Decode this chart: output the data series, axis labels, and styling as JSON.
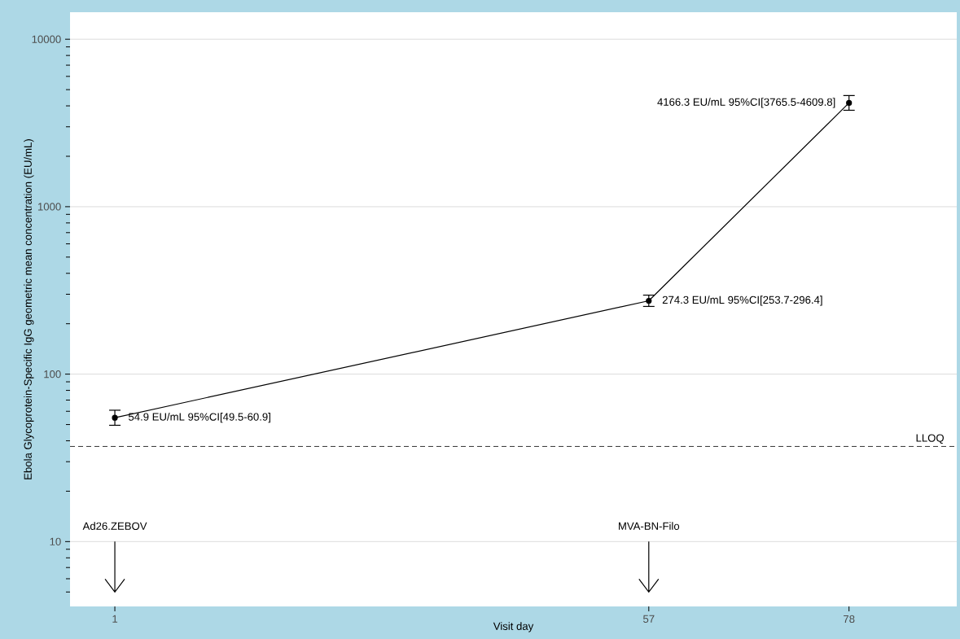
{
  "chart_data": {
    "type": "line",
    "xlabel": "Visit day",
    "ylabel": "Ebola Glycoprotein-Specific IgG geometric mean concentration (EU/mL)",
    "x": [
      1,
      57,
      78
    ],
    "series": [
      {
        "color": "#000000",
        "values": [
          54.9,
          274.3,
          4166.3
        ],
        "errors": [
          [
            49.5,
            60.9
          ],
          [
            253.7,
            296.4
          ],
          [
            3765.5,
            4609.8
          ]
        ],
        "value_labels": [
          "54.9 EU/mL 95%CI[49.5-60.9]",
          "274.3 EU/mL 95%CI[253.7-296.4]",
          "4166.3 EU/mL 95%CI[3765.5-4609.8]"
        ]
      }
    ],
    "xlim": [
      -3.7,
      89.3
    ],
    "xticks": [
      1,
      57,
      78
    ],
    "ylim": [
      4.1,
      14500
    ],
    "yticks": [
      10,
      100,
      1000,
      10000
    ],
    "log": "y",
    "grid": "y",
    "marker": "circle",
    "line_style": "solid",
    "ref_lines": [
      {
        "axis": "y",
        "value": 37,
        "label": "LLOQ",
        "line_style": "dashed",
        "color": "#333333"
      }
    ],
    "annotations": [
      "Ad26.ZEBOV",
      "MVA-BN-Filo"
    ]
  }
}
